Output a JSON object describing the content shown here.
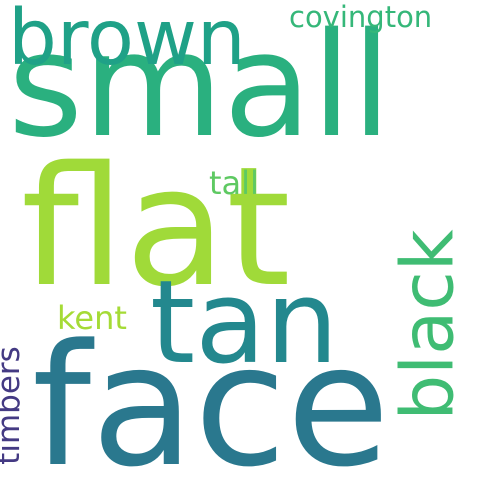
{
  "words": [
    {
      "text": "small",
      "color": "#2ab07f"
    },
    {
      "text": "flat",
      "color": "#a0da39"
    },
    {
      "text": "face",
      "color": "#2a788e"
    },
    {
      "text": "tan",
      "color": "#23888e"
    },
    {
      "text": "brown",
      "color": "#1fa187"
    },
    {
      "text": "black",
      "color": "#3fbc73"
    },
    {
      "text": "covington",
      "color": "#35b779"
    },
    {
      "text": "tall",
      "color": "#5ec962"
    },
    {
      "text": "kent",
      "color": "#a5db36"
    },
    {
      "text": "timbers",
      "color": "#443a83"
    }
  ]
}
